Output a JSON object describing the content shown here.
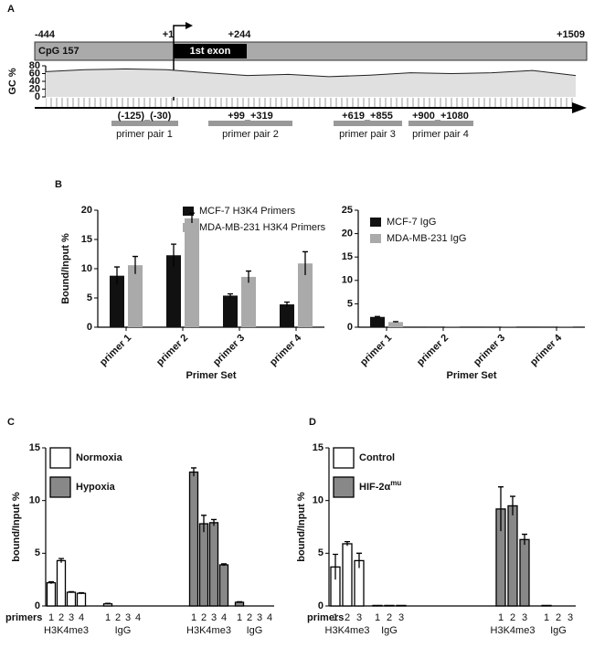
{
  "panel_labels": [
    "A",
    "B",
    "C",
    "D"
  ],
  "diagram": {
    "positions": [
      "-444",
      "+1",
      "+244",
      "+1509"
    ],
    "island": "CpG 157",
    "exon": "1st exon",
    "primers": [
      {
        "range": "(-125)_(-30)",
        "label": "primer pair 1"
      },
      {
        "range": "+99_+319",
        "label": "primer pair 2"
      },
      {
        "range": "+619_+855",
        "label": "primer pair 3"
      },
      {
        "range": "+900_+1080",
        "label": "primer pair 4"
      }
    ]
  },
  "chart_data": [
    {
      "type": "line",
      "ylabel": "GC %",
      "x": [
        -444,
        -300,
        -150,
        0,
        150,
        300,
        450,
        600,
        750,
        900,
        1050,
        1200,
        1350,
        1509
      ],
      "values": [
        65,
        70,
        72,
        70,
        62,
        55,
        58,
        52,
        56,
        62,
        60,
        62,
        68,
        55
      ],
      "color": "#222222",
      "xlim": [
        -444,
        1509
      ],
      "ylim": [
        0,
        80
      ],
      "yticks": [
        0,
        20,
        40,
        60,
        80
      ]
    },
    {
      "type": "bar",
      "ylabel": "Bound/Input %",
      "xlabel": "Primer Set",
      "categories": [
        "primer 1",
        "primer 2",
        "primer 3",
        "primer 4"
      ],
      "series": [
        {
          "name": "MCF-7 H3K4 Primers",
          "color": "#111111",
          "values": [
            8.8,
            12.3,
            5.4,
            3.9
          ],
          "errors": [
            1.5,
            1.9,
            0.3,
            0.4
          ]
        },
        {
          "name": "MDA-MB-231 H3K4 Primers",
          "color": "#aaaaaa",
          "values": [
            10.6,
            18.6,
            8.6,
            10.9
          ],
          "errors": [
            1.5,
            0.9,
            1.0,
            2.0
          ]
        }
      ],
      "ylim": [
        0,
        20
      ],
      "yticks": [
        0,
        5,
        10,
        15,
        20
      ]
    },
    {
      "type": "bar",
      "xlabel": "Primer Set",
      "categories": [
        "primer 1",
        "primer 2",
        "primer 3",
        "primer 4"
      ],
      "series": [
        {
          "name": "MCF-7 IgG",
          "color": "#111111",
          "values": [
            2.2,
            0.1,
            0.1,
            0.1
          ],
          "errors": [
            0.1,
            null,
            null,
            null
          ]
        },
        {
          "name": "MDA-MB-231 IgG",
          "color": "#aaaaaa",
          "values": [
            1.1,
            0.05,
            0.05,
            0.05
          ],
          "errors": [
            0.1,
            null,
            null,
            null
          ]
        }
      ],
      "ylim": [
        0,
        25
      ],
      "yticks": [
        0,
        5,
        10,
        15,
        20,
        25
      ]
    },
    {
      "type": "bar",
      "ylabel": "bound/Input %",
      "xlabel": "primers",
      "categories": [
        "1",
        "2",
        "3",
        "4",
        "1",
        "2",
        "3",
        "4",
        "1",
        "2",
        "3",
        "4",
        "1",
        "2",
        "3",
        "4"
      ],
      "group_labels": [
        "H3K4me3",
        "IgG",
        "H3K4me3",
        "IgG"
      ],
      "series": [
        {
          "name": "Normoxia",
          "color": "#ffffff",
          "values": [
            2.2,
            4.3,
            1.3,
            1.2,
            0.2,
            0,
            0,
            0,
            null,
            null,
            null,
            null,
            null,
            null,
            null,
            null
          ],
          "errors": [
            0.1,
            0.2,
            0.05,
            0.05,
            0.05,
            null,
            null,
            null,
            null,
            null,
            null,
            null,
            null,
            null,
            null,
            null
          ]
        },
        {
          "name": "Hypoxia",
          "color": "#888888",
          "values": [
            null,
            null,
            null,
            null,
            null,
            null,
            null,
            null,
            12.7,
            7.8,
            7.9,
            3.9,
            0.35,
            0,
            0,
            0
          ],
          "errors": [
            null,
            null,
            null,
            null,
            null,
            null,
            null,
            null,
            0.4,
            0.8,
            0.3,
            0.1,
            0.05,
            null,
            null,
            null
          ]
        }
      ],
      "ylim": [
        0,
        15
      ],
      "yticks": [
        0,
        5,
        10,
        15
      ]
    },
    {
      "type": "bar",
      "ylabel": "bound/Input %",
      "xlabel": "primers",
      "categories": [
        "1",
        "2",
        "3",
        "1",
        "2",
        "3",
        "1",
        "2",
        "3",
        "1",
        "2",
        "3"
      ],
      "group_labels": [
        "H3K4me3",
        "IgG",
        "H3K4me3",
        "IgG"
      ],
      "series": [
        {
          "name": "Control",
          "color": "#ffffff",
          "values": [
            3.7,
            5.9,
            4.3,
            0.05,
            0.05,
            0.05,
            null,
            null,
            null,
            null,
            null,
            null
          ],
          "errors": [
            1.2,
            0.2,
            0.7,
            null,
            null,
            null,
            null,
            null,
            null,
            null,
            null,
            null
          ]
        },
        {
          "name": "HIF-2α",
          "name_sup": "mu",
          "color": "#888888",
          "values": [
            null,
            null,
            null,
            null,
            null,
            null,
            9.2,
            9.5,
            6.3,
            0.05,
            0,
            0
          ],
          "errors": [
            null,
            null,
            null,
            null,
            null,
            null,
            2.1,
            0.9,
            0.5,
            null,
            null,
            null
          ]
        }
      ],
      "ylim": [
        0,
        15
      ],
      "yticks": [
        0,
        5,
        10,
        15
      ]
    }
  ]
}
